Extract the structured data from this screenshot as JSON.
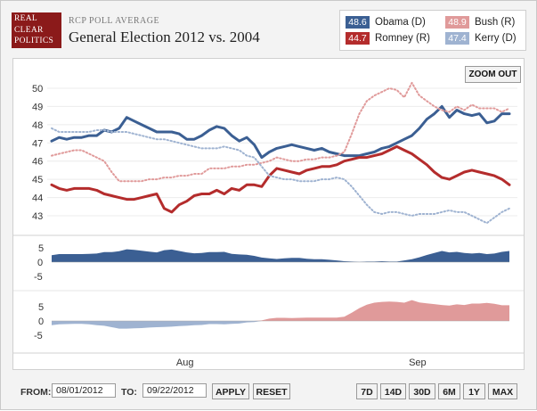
{
  "brand": {
    "logo_lines": [
      "REAL",
      "CLEAR",
      "POLITICS"
    ]
  },
  "header": {
    "supertitle": "RCP POLL AVERAGE",
    "title": "General Election 2012 vs. 2004"
  },
  "legend": [
    {
      "label": "Obama (D)",
      "value": "48.6",
      "color": "#3b5f93"
    },
    {
      "label": "Bush (R)",
      "value": "48.9",
      "color": "#e09a9a"
    },
    {
      "label": "Romney (R)",
      "value": "44.7",
      "color": "#b42c2c"
    },
    {
      "label": "Kerry (D)",
      "value": "47.4",
      "color": "#9fb3d1"
    }
  ],
  "controls": {
    "zoom_out": "ZOOM OUT",
    "from_label": "FROM:",
    "from_value": "08/01/2012",
    "to_label": "TO:",
    "to_value": "09/22/2012",
    "apply": "APPLY",
    "reset": "RESET",
    "ranges": [
      "7D",
      "14D",
      "30D",
      "6M",
      "1Y",
      "MAX"
    ]
  },
  "chart_data": {
    "type": "line",
    "x": [
      "2012-07-24",
      "2012-07-25",
      "2012-07-26",
      "2012-07-27",
      "2012-07-28",
      "2012-07-29",
      "2012-07-30",
      "2012-07-31",
      "2012-08-01",
      "2012-08-02",
      "2012-08-03",
      "2012-08-04",
      "2012-08-05",
      "2012-08-06",
      "2012-08-07",
      "2012-08-08",
      "2012-08-09",
      "2012-08-10",
      "2012-08-11",
      "2012-08-12",
      "2012-08-13",
      "2012-08-14",
      "2012-08-15",
      "2012-08-16",
      "2012-08-17",
      "2012-08-18",
      "2012-08-19",
      "2012-08-20",
      "2012-08-21",
      "2012-08-22",
      "2012-08-23",
      "2012-08-24",
      "2012-08-25",
      "2012-08-26",
      "2012-08-27",
      "2012-08-28",
      "2012-08-29",
      "2012-08-30",
      "2012-08-31",
      "2012-09-01",
      "2012-09-02",
      "2012-09-03",
      "2012-09-04",
      "2012-09-05",
      "2012-09-06",
      "2012-09-07",
      "2012-09-08",
      "2012-09-09",
      "2012-09-10",
      "2012-09-11",
      "2012-09-12",
      "2012-09-13",
      "2012-09-14",
      "2012-09-15",
      "2012-09-16",
      "2012-09-17",
      "2012-09-18",
      "2012-09-19",
      "2012-09-20",
      "2012-09-21",
      "2012-09-22",
      "2012-09-23"
    ],
    "x_ticks": [
      "Aug",
      "Sep"
    ],
    "y_ticks": [
      43,
      44,
      45,
      46,
      47,
      48,
      49,
      50
    ],
    "ylim": [
      42.5,
      50.5
    ],
    "series": [
      {
        "name": "Obama (D)",
        "color": "#3b5f93",
        "style": "solid",
        "values": [
          47.1,
          47.3,
          47.2,
          47.3,
          47.3,
          47.4,
          47.4,
          47.7,
          47.6,
          47.8,
          48.4,
          48.2,
          48.0,
          47.8,
          47.6,
          47.6,
          47.6,
          47.5,
          47.2,
          47.2,
          47.4,
          47.7,
          47.9,
          47.8,
          47.4,
          47.1,
          47.3,
          46.9,
          46.2,
          46.5,
          46.7,
          46.8,
          46.9,
          46.8,
          46.7,
          46.6,
          46.7,
          46.5,
          46.4,
          46.3,
          46.3,
          46.3,
          46.4,
          46.5,
          46.7,
          46.8,
          47.0,
          47.2,
          47.4,
          47.8,
          48.3,
          48.6,
          49.0,
          48.4,
          48.8,
          48.6,
          48.5,
          48.6,
          48.1,
          48.2,
          48.6,
          48.6
        ]
      },
      {
        "name": "Romney (R)",
        "color": "#b42c2c",
        "style": "solid",
        "values": [
          44.7,
          44.5,
          44.4,
          44.5,
          44.5,
          44.5,
          44.4,
          44.2,
          44.1,
          44.0,
          43.9,
          43.9,
          44.0,
          44.1,
          44.2,
          43.4,
          43.2,
          43.6,
          43.8,
          44.1,
          44.2,
          44.2,
          44.4,
          44.2,
          44.5,
          44.4,
          44.7,
          44.7,
          44.6,
          45.2,
          45.6,
          45.5,
          45.4,
          45.3,
          45.5,
          45.6,
          45.7,
          45.7,
          45.8,
          46.0,
          46.1,
          46.2,
          46.2,
          46.3,
          46.4,
          46.6,
          46.8,
          46.6,
          46.4,
          46.1,
          45.8,
          45.4,
          45.1,
          45.0,
          45.2,
          45.4,
          45.5,
          45.4,
          45.3,
          45.2,
          45.0,
          44.7
        ]
      },
      {
        "name": "Bush (R)",
        "color": "#e09a9a",
        "style": "dotted",
        "values": [
          46.3,
          46.4,
          46.5,
          46.6,
          46.6,
          46.4,
          46.2,
          46.0,
          45.4,
          44.9,
          44.9,
          44.9,
          44.9,
          45.0,
          45.0,
          45.1,
          45.1,
          45.2,
          45.2,
          45.3,
          45.3,
          45.6,
          45.6,
          45.6,
          45.7,
          45.7,
          45.8,
          45.8,
          45.9,
          46.0,
          46.2,
          46.1,
          46.0,
          46.0,
          46.1,
          46.1,
          46.2,
          46.2,
          46.3,
          46.5,
          47.5,
          48.6,
          49.3,
          49.6,
          49.8,
          50.0,
          49.9,
          49.5,
          50.3,
          49.6,
          49.3,
          49.0,
          48.8,
          48.7,
          49.0,
          48.8,
          49.1,
          48.9,
          48.9,
          48.9,
          48.7,
          48.9
        ]
      },
      {
        "name": "Kerry (D)",
        "color": "#9fb3d1",
        "style": "dotted",
        "values": [
          47.8,
          47.6,
          47.6,
          47.6,
          47.6,
          47.6,
          47.7,
          47.7,
          47.6,
          47.6,
          47.6,
          47.5,
          47.4,
          47.3,
          47.2,
          47.2,
          47.1,
          47.0,
          46.9,
          46.8,
          46.7,
          46.7,
          46.7,
          46.8,
          46.7,
          46.6,
          46.3,
          46.2,
          45.7,
          45.2,
          45.1,
          45.0,
          45.0,
          44.9,
          44.9,
          44.9,
          45.0,
          45.0,
          45.1,
          45.0,
          44.6,
          44.1,
          43.6,
          43.2,
          43.1,
          43.2,
          43.2,
          43.1,
          43.0,
          43.1,
          43.1,
          43.1,
          43.2,
          43.3,
          43.2,
          43.2,
          43.0,
          42.8,
          42.6,
          42.9,
          43.2,
          43.4
        ]
      }
    ],
    "spread_2012": {
      "name": "Obama lead",
      "values": [
        2.4,
        2.8,
        2.8,
        2.8,
        2.8,
        2.9,
        3.0,
        3.5,
        3.5,
        3.8,
        4.5,
        4.3,
        4.0,
        3.7,
        3.4,
        4.2,
        4.4,
        3.9,
        3.4,
        3.1,
        3.2,
        3.5,
        3.5,
        3.6,
        2.9,
        2.7,
        2.6,
        2.2,
        1.6,
        1.3,
        1.1,
        1.3,
        1.5,
        1.5,
        1.2,
        1.0,
        1.0,
        0.8,
        0.6,
        0.3,
        0.2,
        0.1,
        0.2,
        0.2,
        0.3,
        0.2,
        0.2,
        0.6,
        1.0,
        1.7,
        2.5,
        3.2,
        3.9,
        3.4,
        3.6,
        3.2,
        3.0,
        3.2,
        2.8,
        3.0,
        3.6,
        3.9
      ]
    },
    "spread_2004": {
      "name": "Bush lead",
      "values": [
        -1.5,
        -1.2,
        -1.1,
        -1.0,
        -1.0,
        -1.2,
        -1.5,
        -1.7,
        -2.2,
        -2.7,
        -2.7,
        -2.6,
        -2.5,
        -2.3,
        -2.2,
        -2.1,
        -2.0,
        -1.8,
        -1.7,
        -1.5,
        -1.4,
        -1.1,
        -1.1,
        -1.2,
        -1.0,
        -0.9,
        -0.5,
        -0.4,
        0.2,
        0.8,
        1.1,
        1.1,
        1.0,
        1.1,
        1.2,
        1.2,
        1.2,
        1.2,
        1.2,
        1.5,
        2.9,
        4.5,
        5.7,
        6.4,
        6.7,
        6.8,
        6.7,
        6.4,
        7.3,
        6.5,
        6.2,
        5.9,
        5.6,
        5.4,
        5.8,
        5.6,
        6.1,
        6.1,
        6.3,
        6.0,
        5.5,
        5.5
      ]
    },
    "spread_ticks": [
      -5,
      0,
      5
    ]
  }
}
